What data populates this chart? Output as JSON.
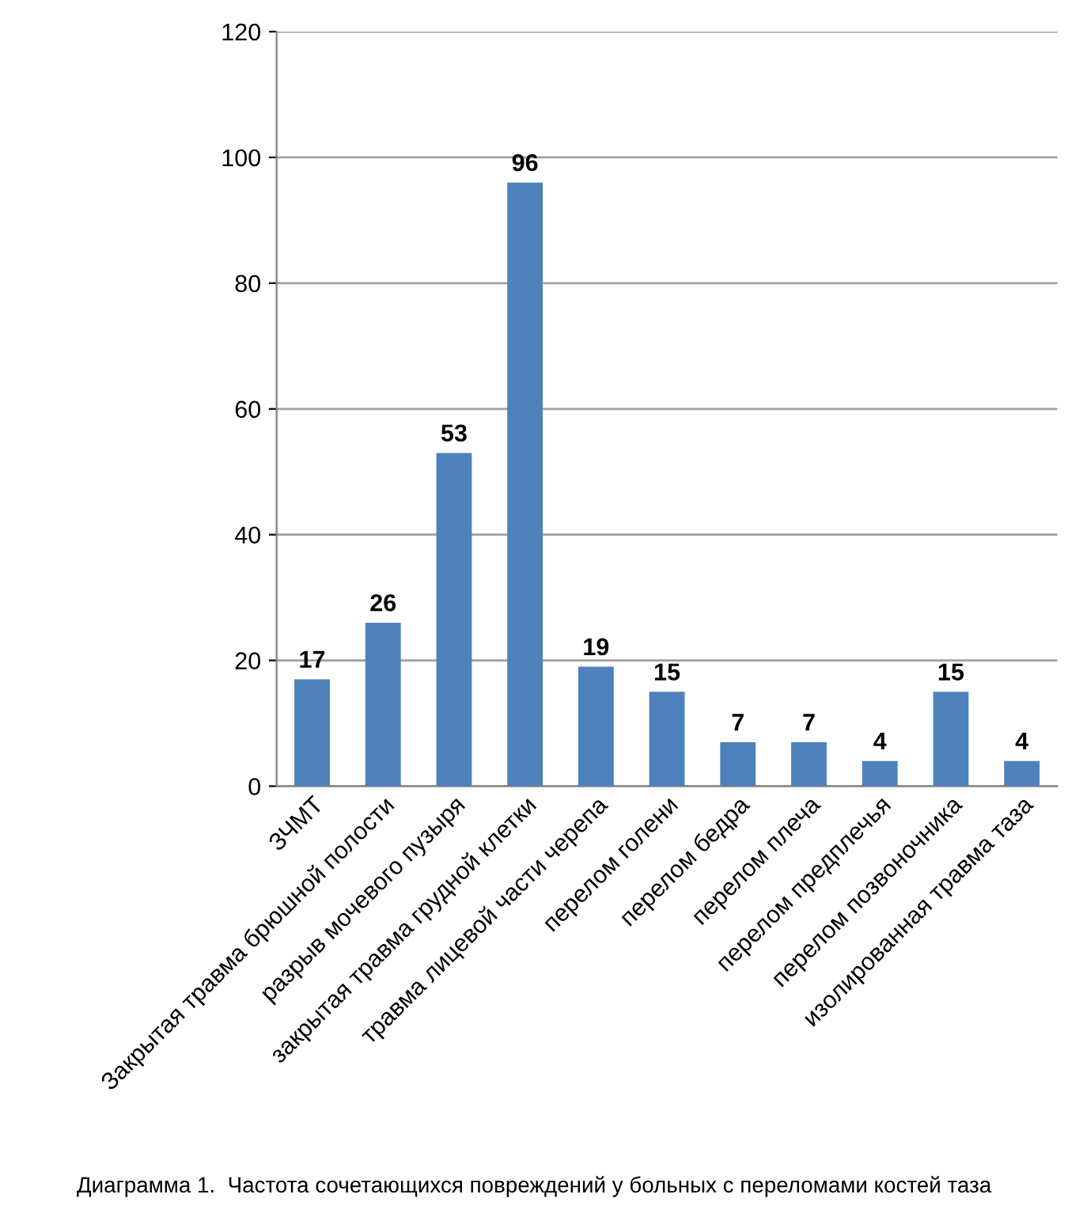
{
  "chart_data": {
    "type": "bar",
    "categories": [
      "ЗЧМТ",
      "Закрытая травма брюшной полости",
      "разрыв мочевого пузыря",
      "закрытая травма грудной клетки",
      "травма лицевой части черепа",
      "перелом голени",
      "перелом бедра",
      "перелом плеча",
      "перелом предплечья",
      "перелом позвоночника",
      "изолированная травма таза"
    ],
    "values": [
      17,
      26,
      53,
      96,
      19,
      15,
      7,
      7,
      4,
      15,
      4
    ],
    "color": "#4f81bd",
    "ylim": [
      0,
      120
    ],
    "yticks": [
      0,
      20,
      40,
      60,
      80,
      100,
      120
    ],
    "grid": "y",
    "data_labels": true,
    "annotations": [
      "Диаграмма 1.  Частота сочетающихся повреждений у больных с переломами костей таза"
    ]
  }
}
